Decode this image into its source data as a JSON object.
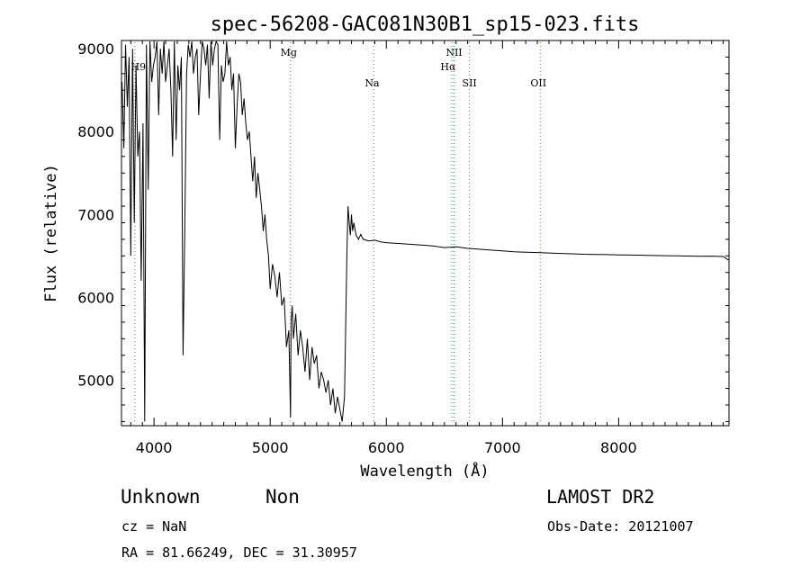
{
  "chart_data": {
    "type": "line",
    "title": "spec-56208-GAC081N30B1_sp15-023.fits",
    "xlabel": "Wavelength (Å)",
    "ylabel": "Flux (relative)",
    "xlim": [
      3720,
      8950
    ],
    "ylim": [
      4450,
      9100
    ],
    "xticks": [
      4000,
      5000,
      6000,
      7000,
      8000
    ],
    "yticks": [
      5000,
      6000,
      7000,
      8000,
      9000
    ],
    "grid": false,
    "line_color": "#000000",
    "marker_color": "#d44a4a",
    "lines": [
      {
        "name": "H9",
        "wavelength": 3835
      },
      {
        "name": "Mg",
        "wavelength": 5175
      },
      {
        "name": "Na",
        "wavelength": 5893
      },
      {
        "name": "NII",
        "wavelength": 6583
      },
      {
        "name": "Hα",
        "wavelength": 6563
      },
      {
        "name": "SII",
        "wavelength": 6716
      },
      {
        "name": "OII",
        "wavelength": 7325
      }
    ],
    "series": [
      {
        "x": [
          3725,
          3740,
          3755,
          3770,
          3785,
          3800,
          3815,
          3830,
          3845,
          3860,
          3875,
          3890,
          3905,
          3920,
          3935,
          3950,
          3965,
          3980,
          3995,
          4010,
          4025,
          4040,
          4055,
          4070,
          4085,
          4100,
          4115,
          4130,
          4145,
          4160,
          4175,
          4190,
          4205,
          4220,
          4235,
          4250,
          4265,
          4280,
          4295,
          4310,
          4325,
          4340,
          4355,
          4370,
          4385,
          4400,
          4415,
          4430,
          4445,
          4460,
          4475,
          4490,
          4505,
          4520,
          4535,
          4550,
          4565,
          4580,
          4595,
          4610,
          4625,
          4640,
          4655,
          4670,
          4685,
          4700,
          4715,
          4730,
          4745,
          4760,
          4775,
          4790,
          4805,
          4820,
          4835,
          4850,
          4865,
          4880,
          4895,
          4910,
          4925,
          4940,
          4955,
          4970,
          4985,
          5000,
          5020,
          5040,
          5060,
          5080,
          5100,
          5120,
          5140,
          5160,
          5175,
          5180,
          5190,
          5200,
          5220,
          5240,
          5260,
          5280,
          5300,
          5320,
          5340,
          5360,
          5380,
          5400,
          5420,
          5440,
          5460,
          5480,
          5500,
          5520,
          5540,
          5560,
          5580,
          5600,
          5620,
          5640,
          5660,
          5670,
          5680,
          5690,
          5700,
          5710,
          5720,
          5740,
          5760,
          5780,
          5800,
          5850,
          5900,
          5950,
          6000,
          6100,
          6200,
          6300,
          6400,
          6500,
          6600,
          6700,
          6800,
          6900,
          7000,
          7100,
          7200,
          7300,
          7400,
          7500,
          7600,
          7700,
          7800,
          7900,
          8000,
          8100,
          8200,
          8300,
          8400,
          8500,
          8600,
          8700,
          8800,
          8900,
          8945
        ],
        "y": [
          8600,
          7800,
          9050,
          8300,
          8900,
          6500,
          9000,
          6900,
          8800,
          7700,
          8000,
          6200,
          8100,
          4500,
          9050,
          7300,
          9100,
          8600,
          8800,
          8900,
          9100,
          8200,
          9000,
          8700,
          9100,
          8600,
          8800,
          9000,
          8500,
          7700,
          9100,
          7900,
          8800,
          8500,
          8900,
          5300,
          6800,
          8700,
          9050,
          8900,
          9100,
          8700,
          8900,
          9000,
          8200,
          8700,
          9100,
          9000,
          8800,
          9050,
          8400,
          9100,
          8800,
          9000,
          9100,
          9050,
          7900,
          8800,
          8600,
          8700,
          9100,
          8800,
          8900,
          8500,
          8700,
          7800,
          8300,
          8700,
          8600,
          8200,
          8400,
          8100,
          7900,
          8000,
          7700,
          7400,
          7700,
          7200,
          7500,
          7300,
          7100,
          6800,
          7000,
          6700,
          6500,
          6100,
          6400,
          6250,
          6000,
          6300,
          5900,
          6000,
          5400,
          5600,
          4550,
          5700,
          5900,
          5500,
          5800,
          5300,
          5600,
          5400,
          5100,
          5500,
          5000,
          5400,
          5200,
          5300,
          4900,
          5100,
          5000,
          4850,
          5000,
          4700,
          4900,
          4600,
          4800,
          4650,
          4500,
          4800,
          6500,
          7100,
          6900,
          6750,
          7000,
          6800,
          6900,
          6750,
          6700,
          6760,
          6700,
          6680,
          6690,
          6670,
          6660,
          6650,
          6640,
          6630,
          6620,
          6600,
          6610,
          6590,
          6580,
          6570,
          6560,
          6550,
          6545,
          6540,
          6535,
          6530,
          6525,
          6520,
          6518,
          6515,
          6512,
          6510,
          6508,
          6505,
          6502,
          6500,
          6498,
          6495,
          6497,
          6493,
          6450
        ]
      }
    ]
  },
  "info": {
    "class": "Unknown",
    "subclass": "Non",
    "survey": "LAMOST DR2",
    "cz": "cz = NaN",
    "obs_date": "Obs-Date: 20121007",
    "radec": "RA =  81.66249, DEC =  31.30957"
  }
}
